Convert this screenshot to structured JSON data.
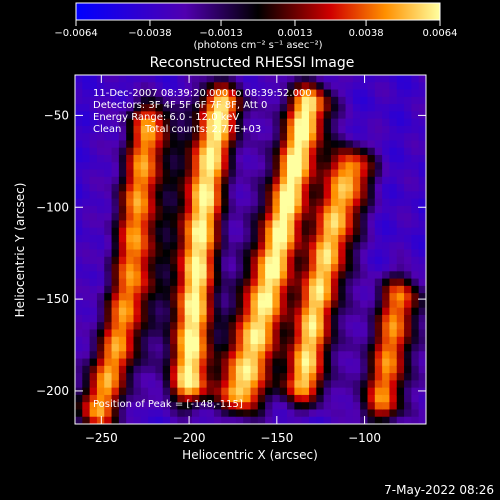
{
  "chart_data": {
    "type": "heatmap",
    "title": "Reconstructed RHESSI Image",
    "xlabel": "Heliocentric X (arcsec)",
    "ylabel": "Heliocentric Y (arcsec)",
    "xlim": [
      -265,
      -65
    ],
    "ylim": [
      -218,
      -28
    ],
    "x_ticks": [
      -250,
      -200,
      -150,
      -100
    ],
    "y_ticks": [
      -50,
      -100,
      -150,
      -200
    ],
    "x_tick_labels": [
      "−250",
      "−200",
      "−150",
      "−100"
    ],
    "y_tick_labels": [
      "−50",
      "−100",
      "−150",
      "−200"
    ],
    "colorbar": {
      "range": [
        -0.0064,
        0.0064
      ],
      "tick_values": [
        -0.0064,
        -0.0038,
        -0.0013,
        0.0013,
        0.0038,
        0.0064
      ],
      "tick_labels": [
        "−0.0064",
        "−0.0038",
        "−0.0013",
        "0.0013",
        "0.0038",
        "0.0064"
      ],
      "unit_label": "(photons cm⁻² s⁻¹ asec⁻²)"
    },
    "annotations": [
      "11-Dec-2007 08:39:20.000 to 08:39:52.000",
      "Detectors: 3F 4F 5F 6F 7F 8F, Att 0",
      "Energy Range: 6.0 - 12.0 keV",
      "Clean",
      "Total counts: 2.77E+03"
    ],
    "peak_label": "Position of Peak = [-148,-115]",
    "peak_position": [
      -148,
      -115
    ],
    "ridges": [
      {
        "points": [
          [
            -252,
            -210
          ],
          [
            -240,
            -175
          ],
          [
            -232,
            -140
          ],
          [
            -228,
            -95
          ],
          [
            -222,
            -55
          ]
        ],
        "peak": 0.0045
      },
      {
        "points": [
          [
            -200,
            -195
          ],
          [
            -198,
            -160
          ],
          [
            -195,
            -120
          ],
          [
            -190,
            -80
          ],
          [
            -182,
            -45
          ]
        ],
        "peak": 0.0062
      },
      {
        "points": [
          [
            -170,
            -200
          ],
          [
            -160,
            -160
          ],
          [
            -150,
            -120
          ],
          [
            -140,
            -80
          ],
          [
            -132,
            -45
          ]
        ],
        "peak": 0.0064
      },
      {
        "points": [
          [
            -135,
            -195
          ],
          [
            -128,
            -155
          ],
          [
            -118,
            -115
          ],
          [
            -108,
            -80
          ]
        ],
        "peak": 0.0055
      },
      {
        "points": [
          [
            -90,
            -205
          ],
          [
            -84,
            -170
          ],
          [
            -80,
            -150
          ]
        ],
        "peak": 0.004
      }
    ],
    "timestamp": "7-May-2022 08:26"
  },
  "colors": {
    "background": "#000000",
    "negative": "#0000ff",
    "zero": "#000000",
    "positive_mid": "#e00000",
    "positive_high": "#ffff60"
  }
}
